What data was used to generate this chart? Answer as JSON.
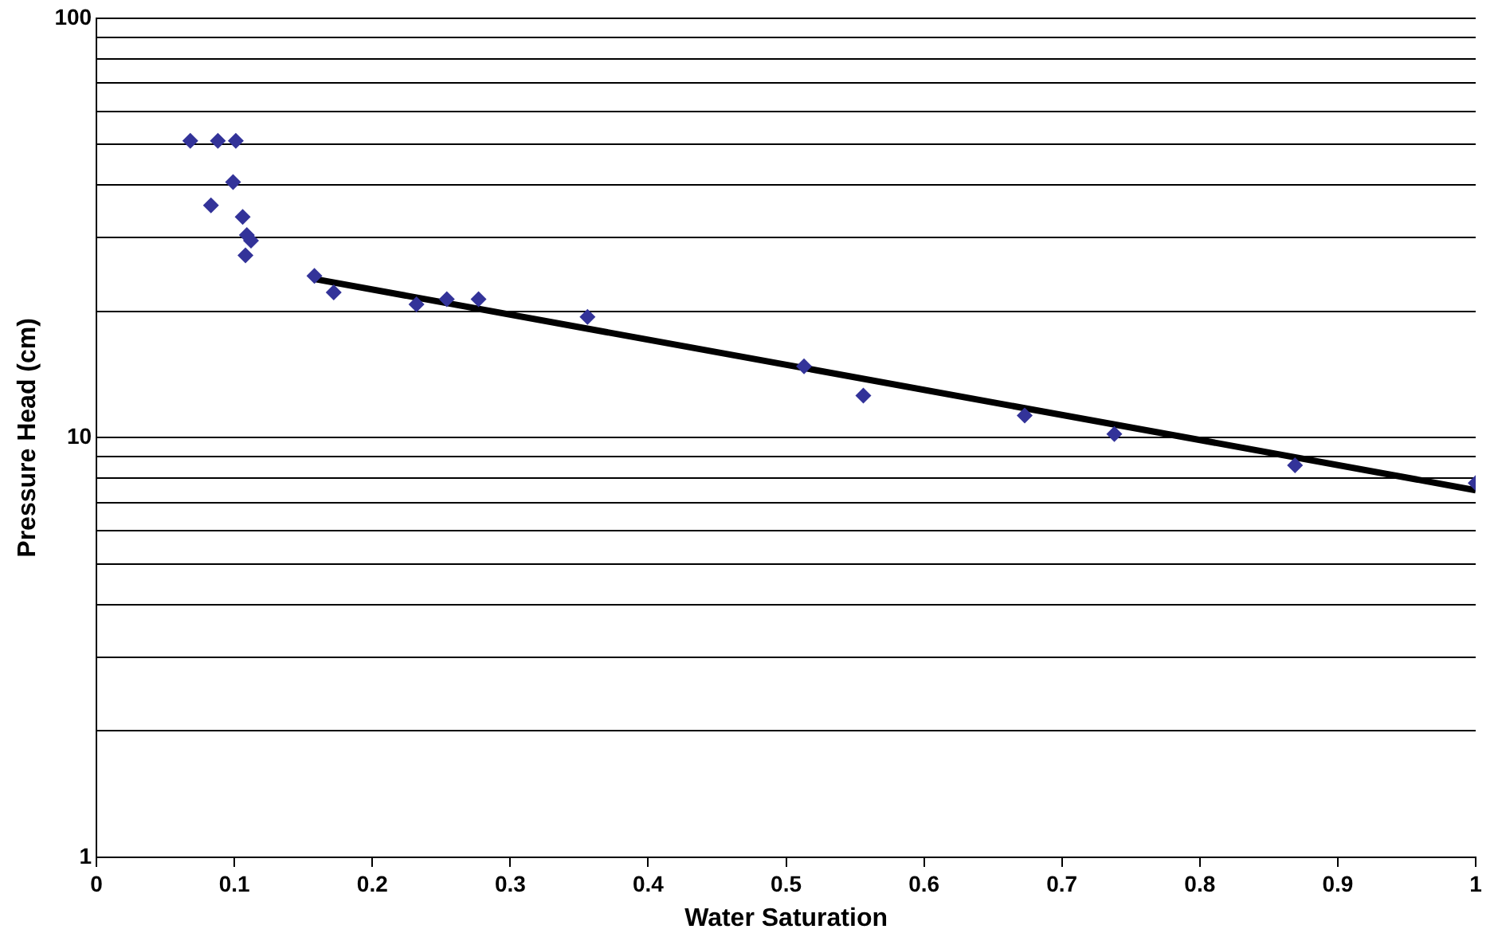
{
  "chart_data": {
    "type": "scatter",
    "xlabel": "Water Saturation",
    "ylabel": "Pressure Head (cm)",
    "log": "y",
    "grid": "y",
    "legend": false,
    "marker": "diamond",
    "xlim": [
      0,
      1
    ],
    "xticks": [
      0,
      0.1,
      0.2,
      0.3,
      0.4,
      0.5,
      0.6,
      0.7,
      0.8,
      0.9,
      1
    ],
    "ylim": [
      1,
      100
    ],
    "yticks": [
      1,
      {
        "value": 2,
        "label": null
      },
      {
        "value": 3,
        "label": null
      },
      {
        "value": 4,
        "label": null
      },
      {
        "value": 5,
        "label": null
      },
      {
        "value": 6,
        "label": null
      },
      {
        "value": 7,
        "label": null
      },
      {
        "value": 8,
        "label": null
      },
      {
        "value": 9,
        "label": null
      },
      10,
      {
        "value": 20,
        "label": null
      },
      {
        "value": 30,
        "label": null
      },
      {
        "value": 40,
        "label": null
      },
      {
        "value": 50,
        "label": null
      },
      {
        "value": 60,
        "label": null
      },
      {
        "value": 70,
        "label": null
      },
      {
        "value": 80,
        "label": null
      },
      {
        "value": 90,
        "label": null
      },
      100
    ],
    "series": [
      {
        "type": "scatter",
        "color": "#333399",
        "x": [
          0.068,
          0.088,
          0.101,
          0.083,
          0.099,
          0.106,
          0.109,
          0.112,
          0.108,
          0.158,
          0.172,
          0.232,
          0.254,
          0.277,
          0.356,
          0.513,
          0.556,
          0.673,
          0.738,
          0.869,
          1.0
        ],
        "values": [
          51,
          51,
          51,
          35.8,
          40.7,
          33.6,
          30.4,
          29.5,
          27.2,
          24.3,
          22.2,
          20.8,
          21.4,
          21.4,
          19.4,
          14.8,
          12.6,
          11.3,
          10.2,
          8.6,
          7.8
        ]
      },
      {
        "type": "line",
        "color": "#000000",
        "marker": "none",
        "x": [
          0.158,
          1.0
        ],
        "values": [
          23.9,
          7.5
        ]
      }
    ]
  }
}
